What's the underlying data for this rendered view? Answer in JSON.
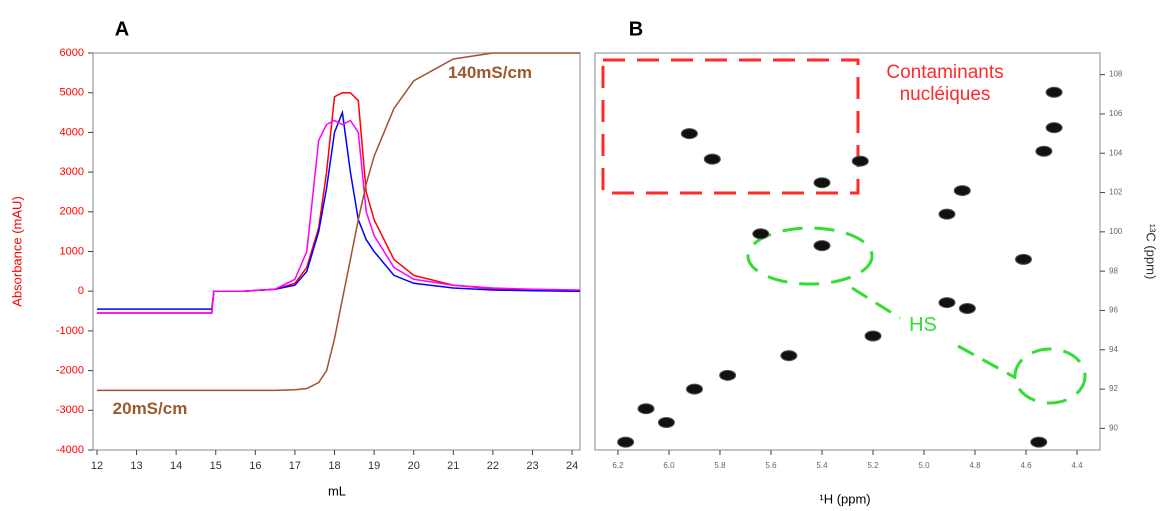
{
  "chart_data": [
    {
      "type": "line",
      "title": "A",
      "x_label": "mL",
      "y_label": "Absorbance (mAU)",
      "y_label_color": "#ff0000",
      "x": [
        12,
        14.9,
        14.95,
        15.7,
        16.5,
        17,
        17.3,
        17.6,
        17.8,
        18.0,
        18.2,
        18.4,
        18.6,
        18.8,
        19.0,
        19.5,
        20,
        21,
        22,
        23,
        24.2
      ],
      "series": [
        {
          "color": "#ff0000",
          "values": [
            -550,
            -550,
            0,
            0,
            50,
            200,
            600,
            1600,
            3000,
            4900,
            5000,
            5000,
            4800,
            2500,
            1800,
            800,
            400,
            150,
            60,
            20,
            0
          ]
        },
        {
          "color": "#0000ff",
          "values": [
            -450,
            -450,
            0,
            0,
            50,
            150,
            500,
            1500,
            2600,
            4000,
            4500,
            3000,
            1800,
            1300,
            1000,
            400,
            200,
            80,
            30,
            10,
            0
          ]
        },
        {
          "color": "#ff00ff",
          "values": [
            -550,
            -550,
            0,
            0,
            50,
            300,
            1000,
            3800,
            4200,
            4300,
            4200,
            4300,
            4000,
            2000,
            1400,
            600,
            300,
            150,
            80,
            50,
            30
          ]
        },
        {
          "color": "#a0522d",
          "values": [
            -2500,
            -2500,
            -2500,
            -2500,
            -2500,
            -2480,
            -2450,
            -2300,
            -2000,
            -1200,
            -200,
            800,
            1800,
            2700,
            3400,
            4600,
            5300,
            5850,
            6000,
            6000,
            6000
          ]
        }
      ],
      "xlim": [
        11.9,
        24.2
      ],
      "xticks": [
        12,
        13,
        14,
        15,
        16,
        17,
        18,
        19,
        20,
        21,
        22,
        23,
        24
      ],
      "ylim": [
        -4000,
        6000
      ],
      "yticks": [
        -4000,
        -3000,
        -2000,
        -1000,
        0,
        1000,
        2000,
        3000,
        4000,
        5000,
        6000
      ],
      "y_axis_side": "left",
      "annotations": [
        "140mS/cm",
        "20mS/cm"
      ],
      "annotation_colors": [
        "#9c5a2c",
        "#9c5a2c"
      ]
    },
    {
      "type": "scatter",
      "title": "B",
      "x_label": "¹H (ppm)",
      "y_label": "¹³C (ppm)",
      "y_label_color": "#333333",
      "x": [
        6.17,
        6.09,
        6.01,
        5.9,
        5.77,
        5.53,
        5.2,
        4.91,
        4.83,
        4.61,
        5.4,
        5.64,
        4.91,
        4.85,
        5.4,
        5.25,
        5.92,
        5.83,
        4.53,
        4.49,
        4.49,
        4.55
      ],
      "values": [
        89.3,
        91.0,
        90.3,
        92.0,
        92.7,
        93.7,
        94.7,
        96.4,
        96.1,
        98.6,
        99.3,
        99.9,
        100.9,
        102.1,
        102.5,
        103.6,
        105.0,
        103.7,
        104.1,
        105.3,
        107.1,
        89.3
      ],
      "color": "#111111",
      "xlim": [
        6.29,
        4.31
      ],
      "xticks": [
        6.2,
        {
          "value": 6,
          "label": "6.0"
        },
        5.8,
        5.6,
        5.4,
        5.2,
        {
          "value": 5,
          "label": "5.0"
        },
        4.8,
        4.6,
        4.4
      ],
      "ylim": [
        88.9,
        109.1
      ],
      "yticks": [
        90,
        92,
        94,
        96,
        98,
        100,
        102,
        104,
        106,
        108
      ],
      "y_axis_side": "right",
      "annotations": [
        "Contaminants nucléiques",
        "HS"
      ],
      "annotation_colors": [
        "#ff2a2a",
        "#33dd33"
      ]
    }
  ]
}
